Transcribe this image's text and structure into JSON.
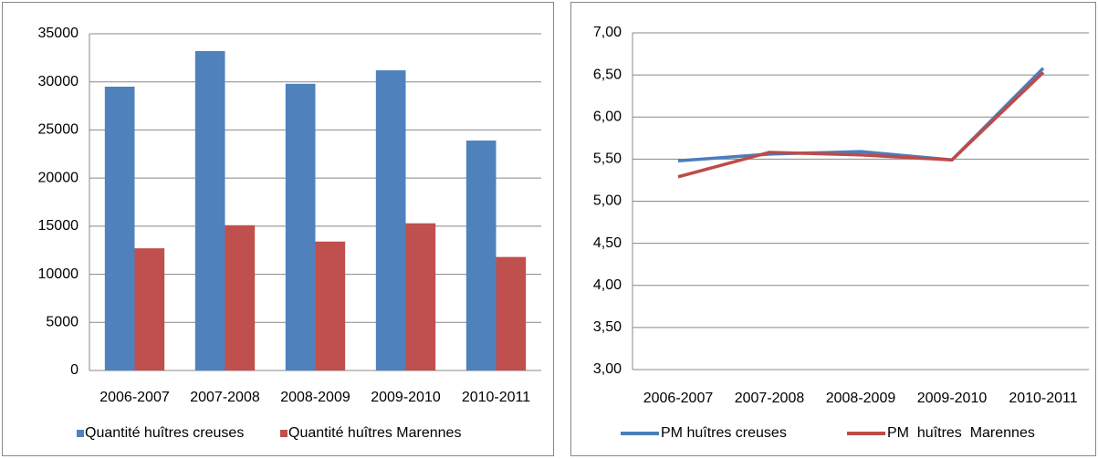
{
  "chart_data": [
    {
      "type": "bar",
      "categories": [
        "2006-2007",
        "2007-2008",
        "2008-2009",
        "2009-2010",
        "2010-2011"
      ],
      "series": [
        {
          "name": "Quantité huîtres creuses",
          "color": "#4f81bd",
          "values": [
            29500,
            33200,
            29800,
            31200,
            23900
          ]
        },
        {
          "name": "Quantité huîtres Marennes",
          "color": "#c0504d",
          "values": [
            12700,
            15100,
            13400,
            15300,
            11800
          ]
        }
      ],
      "ylim": [
        0,
        35000
      ],
      "yticks": [
        0,
        5000,
        10000,
        15000,
        20000,
        25000,
        30000,
        35000
      ],
      "grid": true,
      "legend": "bottom"
    },
    {
      "type": "line",
      "categories": [
        "2006-2007",
        "2007-2008",
        "2008-2009",
        "2009-2010",
        "2010-2011"
      ],
      "series": [
        {
          "name": "PM huîtres creuses",
          "color": "#4a7ebb",
          "values": [
            5.48,
            5.56,
            5.59,
            5.49,
            6.58
          ]
        },
        {
          "name": "PM  huîtres  Marennes",
          "color": "#be4b48",
          "values": [
            5.29,
            5.58,
            5.55,
            5.49,
            6.53
          ]
        }
      ],
      "ylim": [
        3,
        7
      ],
      "yticks": [
        {
          "value": 3,
          "label": "3,00"
        },
        {
          "value": 3.5,
          "label": "3,50"
        },
        {
          "value": 4,
          "label": "4,00"
        },
        {
          "value": 4.5,
          "label": "4,50"
        },
        {
          "value": 5,
          "label": "5,00"
        },
        {
          "value": 5.5,
          "label": "5,50"
        },
        {
          "value": 6,
          "label": "6,00"
        },
        {
          "value": 6.5,
          "label": "6,50"
        },
        {
          "value": 7,
          "label": "7,00"
        }
      ],
      "grid": true,
      "legend": "bottom"
    }
  ]
}
